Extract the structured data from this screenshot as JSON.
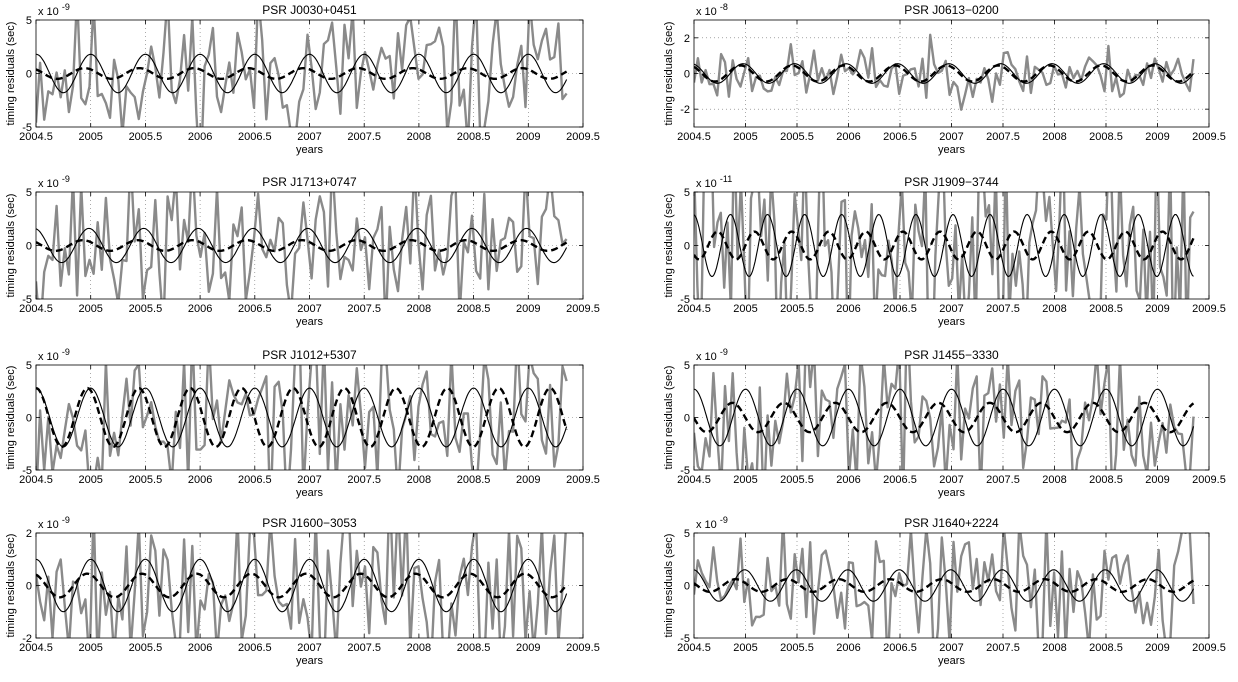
{
  "chart_data": [
    {
      "type": "line",
      "title": "PSR J0030+0451",
      "xlabel": "years",
      "ylabel": "timing residuals (sec)",
      "y_multiplier": "x 10",
      "y_exponent": "-9",
      "xlim": [
        2004.5,
        2009.5
      ],
      "ylim": [
        -5,
        5
      ],
      "xticks": [
        2004.5,
        2005,
        2005.5,
        2006,
        2006.5,
        2007,
        2007.5,
        2008,
        2008.5,
        2009,
        2009.5
      ],
      "xtick_labels": [
        "2004.5",
        "2005",
        "2005.5",
        "2006",
        "2006.5",
        "2007",
        "2007.5",
        "2008",
        "2008.5",
        "2009",
        "2009.5"
      ],
      "yticks": [
        -5,
        0,
        5
      ],
      "ytick_labels": [
        "-5",
        "0",
        "5"
      ],
      "grid": true,
      "x_end": 2009.35,
      "sinusoid_solid": {
        "amplitude": 1.8,
        "period": 0.5,
        "phase": 0.0
      },
      "sinusoid_dashed": {
        "amplitude": 0.5,
        "period": 0.5,
        "phase": 0.7
      },
      "observed": {
        "points": 130,
        "amplitude": 5.6,
        "seed": 11
      }
    },
    {
      "type": "line",
      "title": "PSR J0613−0200",
      "xlabel": "years",
      "ylabel": "timing residuals (sec)",
      "y_multiplier": "x 10",
      "y_exponent": "-8",
      "xlim": [
        2004.5,
        2009.5
      ],
      "ylim": [
        -3,
        3
      ],
      "xticks": [
        2004.5,
        2005,
        2005.5,
        2006,
        2006.5,
        2007,
        2007.5,
        2008,
        2008.5,
        2009,
        2009.5
      ],
      "xtick_labels": [
        "2004.5",
        "2005",
        "2005.5",
        "2006",
        "2006.5",
        "2007",
        "2007.5",
        "2008",
        "2008.5",
        "2009",
        "2009.5"
      ],
      "yticks": [
        -2,
        0,
        2
      ],
      "ytick_labels": [
        "-2",
        "0",
        "2"
      ],
      "grid": true,
      "x_end": 2009.35,
      "sinusoid_solid": {
        "amplitude": 0.55,
        "period": 0.5,
        "phase": 0.3
      },
      "sinusoid_dashed": {
        "amplitude": 0.45,
        "period": 0.5,
        "phase": 0.6
      },
      "observed": {
        "points": 130,
        "amplitude": 1.2,
        "seed": 23
      }
    },
    {
      "type": "line",
      "title": "PSR J1713+0747",
      "xlabel": "years",
      "ylabel": "timing residuals (sec)",
      "y_multiplier": "x 10",
      "y_exponent": "-9",
      "xlim": [
        2004.5,
        2009.5
      ],
      "ylim": [
        -5,
        5
      ],
      "xticks": [
        2004.5,
        2005,
        2005.5,
        2006,
        2006.5,
        2007,
        2007.5,
        2008,
        2008.5,
        2009,
        2009.5
      ],
      "xtick_labels": [
        "2004.5",
        "2005",
        "2005.5",
        "2006",
        "2006.5",
        "2007",
        "2007.5",
        "2008",
        "2008.5",
        "2009",
        "2009.5"
      ],
      "yticks": [
        -5,
        0,
        5
      ],
      "ytick_labels": [
        "-5",
        "0",
        "5"
      ],
      "grid": true,
      "x_end": 2009.35,
      "sinusoid_solid": {
        "amplitude": 1.6,
        "period": 0.5,
        "phase": 0.2
      },
      "sinusoid_dashed": {
        "amplitude": 0.5,
        "period": 0.5,
        "phase": 0.9
      },
      "observed": {
        "points": 130,
        "amplitude": 5.6,
        "seed": 37
      }
    },
    {
      "type": "line",
      "title": "PSR J1909−3744",
      "xlabel": "years",
      "ylabel": "timing residuals (sec)",
      "y_multiplier": "x 10",
      "y_exponent": "-11",
      "xlim": [
        2004.5,
        2009.5
      ],
      "ylim": [
        -5,
        5
      ],
      "xticks": [
        2004.5,
        2005,
        2005.5,
        2006,
        2006.5,
        2007,
        2007.5,
        2008,
        2008.5,
        2009,
        2009.5
      ],
      "xtick_labels": [
        "2004.5",
        "2005",
        "2005.5",
        "2006",
        "2006.5",
        "2007",
        "2007.5",
        "2008",
        "2008.5",
        "2009",
        "2009.5"
      ],
      "yticks": [
        -5,
        0,
        5
      ],
      "ytick_labels": [
        "-5",
        "0",
        "5"
      ],
      "grid": true,
      "x_end": 2009.35,
      "sinusoid_solid": {
        "amplitude": 2.9,
        "period": 0.36,
        "phase": 0.1
      },
      "sinusoid_dashed": {
        "amplitude": 1.3,
        "period": 0.36,
        "phase": 2.3
      },
      "observed": {
        "points": 150,
        "amplitude": 9.0,
        "seed": 41
      }
    },
    {
      "type": "line",
      "title": "PSR J1012+5307",
      "xlabel": "years",
      "ylabel": "timing residuals (sec)",
      "y_multiplier": "x 10",
      "y_exponent": "-9",
      "xlim": [
        2004.5,
        2009.5
      ],
      "ylim": [
        -5,
        5
      ],
      "xticks": [
        2004.5,
        2005,
        2005.5,
        2006,
        2006.5,
        2007,
        2007.5,
        2008,
        2008.5,
        2009,
        2009.5
      ],
      "xtick_labels": [
        "2004.5",
        "2005",
        "2005.5",
        "2006",
        "2006.5",
        "2007",
        "2007.5",
        "2008",
        "2008.5",
        "2009",
        "2009.5"
      ],
      "yticks": [
        -5,
        0,
        5
      ],
      "ytick_labels": [
        "-5",
        "0",
        "5"
      ],
      "grid": true,
      "x_end": 2009.35,
      "sinusoid_solid": {
        "amplitude": 2.8,
        "period": 0.5,
        "phase": 0.0
      },
      "sinusoid_dashed": {
        "amplitude": 2.8,
        "period": 0.47,
        "phase": 0.0
      },
      "observed": {
        "points": 130,
        "amplitude": 6.0,
        "seed": 53
      }
    },
    {
      "type": "line",
      "title": "PSR J1455−3330",
      "xlabel": "years",
      "ylabel": "timing residuals (sec)",
      "y_multiplier": "x 10",
      "y_exponent": "-9",
      "xlim": [
        2004.5,
        2009.5
      ],
      "ylim": [
        -5,
        5
      ],
      "xticks": [
        2004.5,
        2005,
        2005.5,
        2006,
        2006.5,
        2007,
        2007.5,
        2008,
        2008.5,
        2009,
        2009.5
      ],
      "xtick_labels": [
        "2004.5",
        "2005",
        "2005.5",
        "2006",
        "2006.5",
        "2007",
        "2007.5",
        "2008",
        "2008.5",
        "2009",
        "2009.5"
      ],
      "yticks": [
        -5,
        0,
        5
      ],
      "ytick_labels": [
        "-5",
        "0",
        "5"
      ],
      "grid": true,
      "x_end": 2009.35,
      "sinusoid_solid": {
        "amplitude": 2.7,
        "period": 0.5,
        "phase": 0.0
      },
      "sinusoid_dashed": {
        "amplitude": 1.4,
        "period": 0.5,
        "phase": 1.6
      },
      "observed": {
        "points": 130,
        "amplitude": 6.0,
        "seed": 67
      }
    },
    {
      "type": "line",
      "title": "PSR J1600−3053",
      "xlabel": "years",
      "ylabel": "timing residuals (sec)",
      "y_multiplier": "x 10",
      "y_exponent": "-9",
      "xlim": [
        2004.5,
        2009.5
      ],
      "ylim": [
        -2,
        2
      ],
      "xticks": [
        2004.5,
        2005,
        2005.5,
        2006,
        2006.5,
        2007,
        2007.5,
        2008,
        2008.5,
        2009,
        2009.5
      ],
      "xtick_labels": [
        "2004.5",
        "2005",
        "2005.5",
        "2006",
        "2006.5",
        "2007",
        "2007.5",
        "2008",
        "2008.5",
        "2009",
        "2009.5"
      ],
      "yticks": [
        -2,
        0,
        2
      ],
      "ytick_labels": [
        "-2",
        "0",
        "2"
      ],
      "grid": true,
      "x_end": 2009.35,
      "sinusoid_solid": {
        "amplitude": 1.0,
        "period": 0.5,
        "phase": 0.0
      },
      "sinusoid_dashed": {
        "amplitude": 0.45,
        "period": 0.5,
        "phase": 0.4
      },
      "observed": {
        "points": 130,
        "amplitude": 2.6,
        "seed": 79
      }
    },
    {
      "type": "line",
      "title": "PSR J1640+2224",
      "xlabel": "years",
      "ylabel": "timing residuals (sec)",
      "y_multiplier": "x 10",
      "y_exponent": "-9",
      "xlim": [
        2004.5,
        2009.5
      ],
      "ylim": [
        -5,
        5
      ],
      "xticks": [
        2004.5,
        2005,
        2005.5,
        2006,
        2006.5,
        2007,
        2007.5,
        2008,
        2008.5,
        2009,
        2009.5
      ],
      "xtick_labels": [
        "2004.5",
        "2005",
        "2005.5",
        "2006",
        "2006.5",
        "2007",
        "2007.5",
        "2008",
        "2008.5",
        "2009",
        "2009.5"
      ],
      "yticks": [
        -5,
        0,
        5
      ],
      "ytick_labels": [
        "-5",
        "0",
        "5"
      ],
      "grid": true,
      "x_end": 2009.35,
      "sinusoid_solid": {
        "amplitude": 1.5,
        "period": 0.5,
        "phase": 0.1
      },
      "sinusoid_dashed": {
        "amplitude": 0.6,
        "period": 0.5,
        "phase": 1.2
      },
      "observed": {
        "points": 130,
        "amplitude": 5.6,
        "seed": 89
      }
    }
  ],
  "style": {
    "observed_color": "#8a8a8a",
    "model_color": "#000000"
  }
}
